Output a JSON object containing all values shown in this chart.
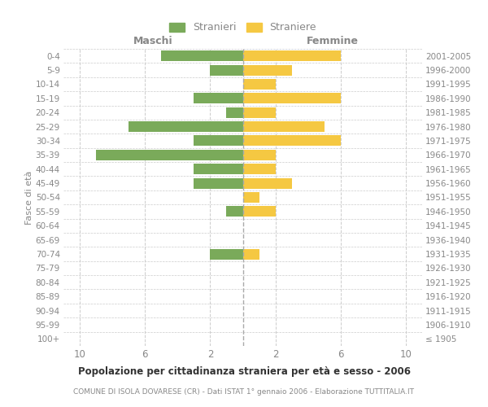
{
  "age_groups": [
    "100+",
    "95-99",
    "90-94",
    "85-89",
    "80-84",
    "75-79",
    "70-74",
    "65-69",
    "60-64",
    "55-59",
    "50-54",
    "45-49",
    "40-44",
    "35-39",
    "30-34",
    "25-29",
    "20-24",
    "15-19",
    "10-14",
    "5-9",
    "0-4"
  ],
  "birth_years": [
    "≤ 1905",
    "1906-1910",
    "1911-1915",
    "1916-1920",
    "1921-1925",
    "1926-1930",
    "1931-1935",
    "1936-1940",
    "1941-1945",
    "1946-1950",
    "1951-1955",
    "1956-1960",
    "1961-1965",
    "1966-1970",
    "1971-1975",
    "1976-1980",
    "1981-1985",
    "1986-1990",
    "1991-1995",
    "1996-2000",
    "2001-2005"
  ],
  "maschi": [
    0,
    0,
    0,
    0,
    0,
    0,
    2,
    0,
    0,
    1,
    0,
    3,
    3,
    9,
    3,
    7,
    1,
    3,
    0,
    2,
    5
  ],
  "femmine": [
    0,
    0,
    0,
    0,
    0,
    0,
    1,
    0,
    0,
    2,
    1,
    3,
    2,
    2,
    6,
    5,
    2,
    6,
    2,
    3,
    6
  ],
  "male_color": "#7aaa5a",
  "female_color": "#f5c842",
  "title_main": "Popolazione per cittadinanza straniera per età e sesso - 2006",
  "title_sub": "COMUNE DI ISOLA DOVARESE (CR) - Dati ISTAT 1° gennaio 2006 - Elaborazione TUTTITALIA.IT",
  "ylabel_left": "Fasce di età",
  "xlabel_left": "Maschi",
  "xlabel_right": "Femmine",
  "legend_male": "Stranieri",
  "legend_female": "Straniere",
  "xlim": 11,
  "xtick_positions": [
    -10,
    -6,
    -2,
    2,
    6,
    10
  ],
  "xtick_labels": [
    "10",
    "6",
    "2",
    "2",
    "6",
    "10"
  ],
  "background_color": "#ffffff",
  "grid_color": "#cccccc",
  "text_color": "#888888",
  "center_line_color": "#aaaaaa",
  "bar_height": 0.75
}
